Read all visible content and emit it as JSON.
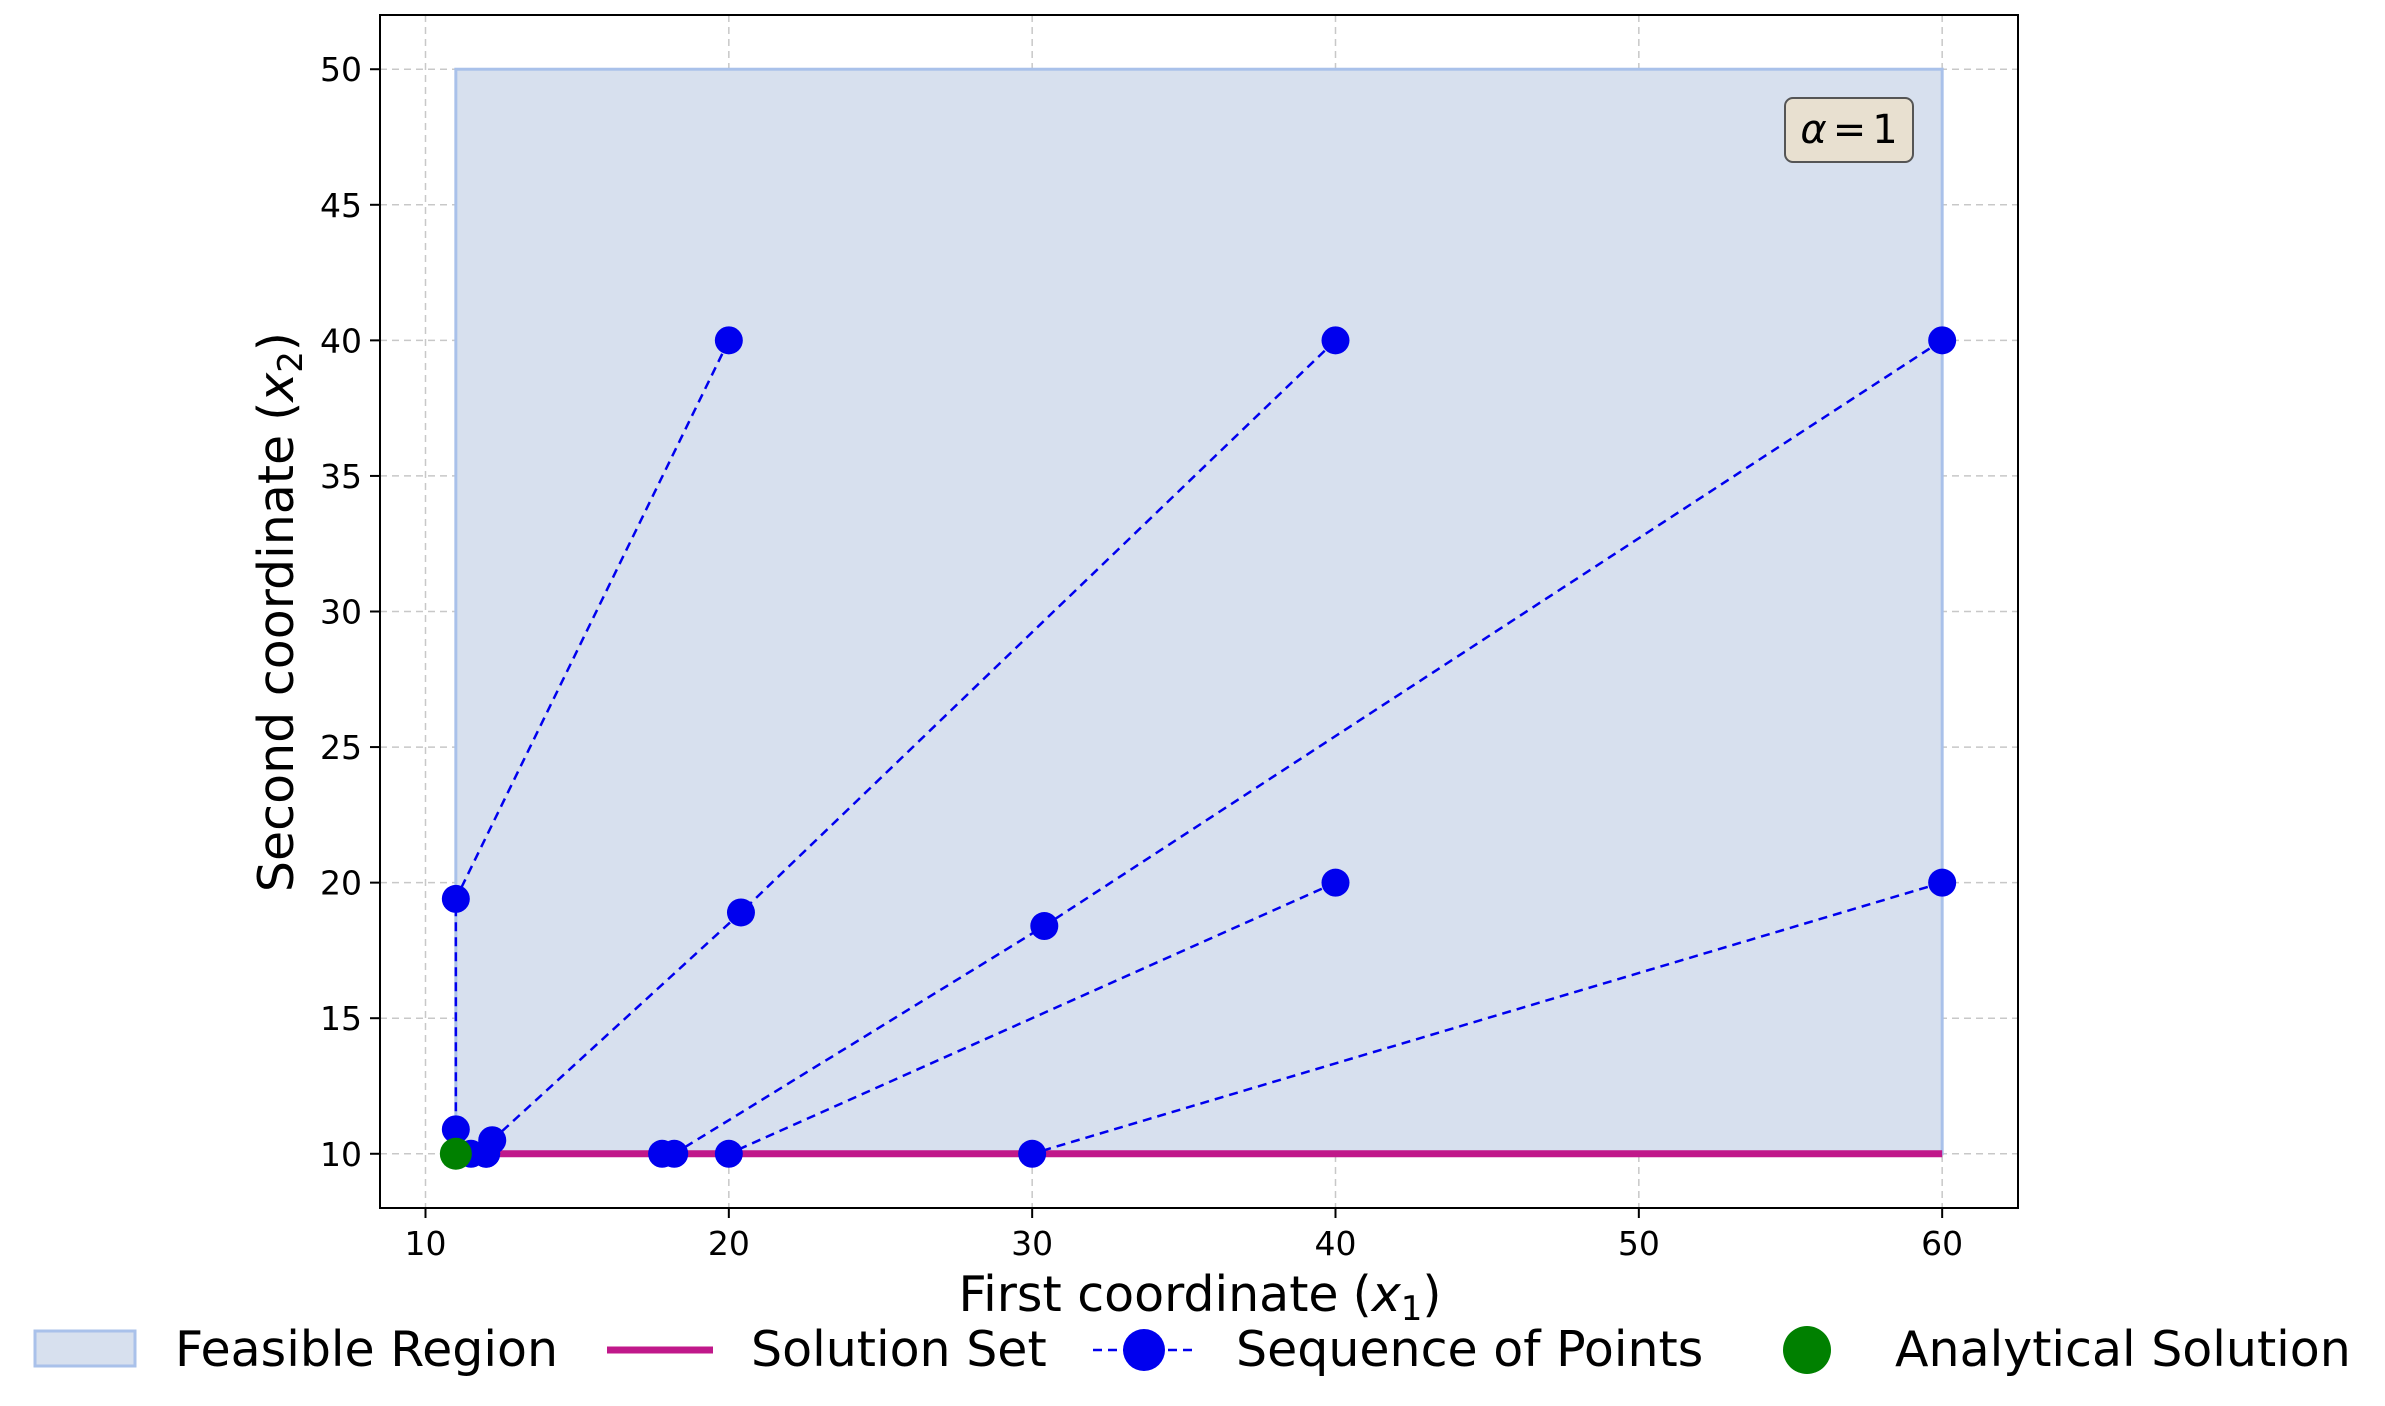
{
  "chart_data": {
    "type": "scatter",
    "title": "",
    "xlabel": "First coordinate",
    "xlabel_var": "x",
    "xlabel_sub": "1",
    "ylabel": "Second coordinate",
    "ylabel_var": "x",
    "ylabel_sub": "2",
    "xlim": [
      8.5,
      62.5
    ],
    "ylim": [
      8,
      52
    ],
    "xticks": [
      10,
      20,
      30,
      40,
      50,
      60
    ],
    "yticks": [
      10,
      15,
      20,
      25,
      30,
      35,
      40,
      45,
      50
    ],
    "grid": true,
    "legend_placement": "bottom",
    "annotation": {
      "symbol": "α",
      "relation": "=",
      "value": "1",
      "placement": "top-right"
    },
    "feasible_region": {
      "name": "Feasible Region",
      "x": [
        11,
        60
      ],
      "y": [
        10,
        50
      ],
      "fill_color": "#d7e0ee",
      "edge_color": "#a9c1ea"
    },
    "solution_set": {
      "name": "Solution Set",
      "x": [
        11,
        60
      ],
      "y": [
        10,
        10
      ],
      "color": "#c0188a"
    },
    "sequence_of_points": {
      "name": "Sequence of Points",
      "color": "#0000ee",
      "paths": [
        [
          [
            20,
            40
          ],
          [
            11,
            19.4
          ],
          [
            11,
            10.9
          ],
          [
            11.5,
            10
          ],
          [
            12,
            10
          ]
        ],
        [
          [
            40,
            40
          ],
          [
            20.4,
            18.9
          ],
          [
            12.2,
            10.5
          ],
          [
            12,
            10
          ]
        ],
        [
          [
            60,
            40
          ],
          [
            30.4,
            18.4
          ],
          [
            18.2,
            10
          ],
          [
            17.8,
            10
          ]
        ],
        [
          [
            40,
            20
          ],
          [
            20,
            10
          ]
        ],
        [
          [
            60,
            20
          ],
          [
            30,
            10
          ]
        ]
      ]
    },
    "analytical_solution": {
      "name": "Analytical Solution",
      "x": 11,
      "y": 10,
      "color": "#008000"
    }
  }
}
